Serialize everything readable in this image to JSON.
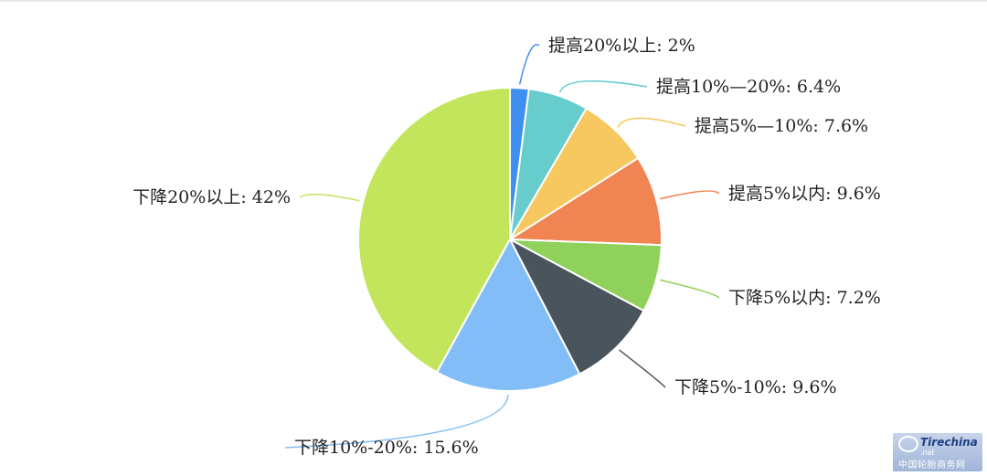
{
  "chart_data": {
    "type": "pie",
    "start": "top",
    "direction": "clockwise",
    "slices": [
      {
        "label": "提高20%以上",
        "value": 2,
        "display": "提高20%以上: 2%",
        "color": "#3f8ff0"
      },
      {
        "label": "提高10%—20%",
        "value": 6.4,
        "display": "提高10%—20%: 6.4%",
        "color": "#66cccc"
      },
      {
        "label": "提高5%—10%",
        "value": 7.6,
        "display": "提高5%—10%: 7.6%",
        "color": "#f6c85f"
      },
      {
        "label": "提高5%以内",
        "value": 9.6,
        "display": "提高5%以内: 9.6%",
        "color": "#f08453"
      },
      {
        "label": "下降5%以内",
        "value": 7.2,
        "display": "下降5%以内: 7.2%",
        "color": "#8fd15a"
      },
      {
        "label": "下降5%-10%",
        "value": 9.6,
        "display": "下降5%-10%: 9.6%",
        "color": "#4a545c"
      },
      {
        "label": "下降10%-20%",
        "value": 15.6,
        "display": "下降10%-20%: 15.6%",
        "color": "#82bdf7"
      },
      {
        "label": "下降20%以上",
        "value": 42,
        "display": "下降20%以上: 42%",
        "color": "#c3e55c"
      }
    ]
  },
  "watermark": {
    "brand": "Tirechina",
    "domain": ".net",
    "cn_name": "中国轮胎商务网"
  }
}
